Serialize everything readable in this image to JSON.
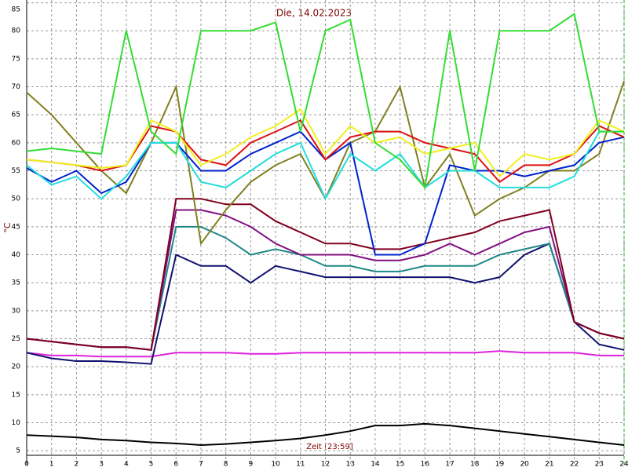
{
  "chart_data": {
    "type": "line",
    "title": "Die, 14.02.2023",
    "ylabel": "°C",
    "xlabel": "Zeit [23:59]",
    "x": [
      0,
      1,
      2,
      3,
      4,
      5,
      6,
      7,
      8,
      9,
      10,
      11,
      12,
      13,
      14,
      15,
      16,
      17,
      18,
      19,
      20,
      21,
      22,
      23,
      24
    ],
    "xlim": [
      0,
      24
    ],
    "xticks": [
      0,
      1,
      2,
      3,
      4,
      5,
      6,
      7,
      8,
      9,
      10,
      11,
      12,
      13,
      14,
      15,
      16,
      17,
      18,
      19,
      20,
      21,
      22,
      23,
      24
    ],
    "ylim": [
      2.5,
      85.5
    ],
    "yticks": [
      5,
      10,
      15,
      20,
      25,
      30,
      35,
      40,
      45,
      50,
      55,
      60,
      65,
      70,
      75,
      80,
      85
    ],
    "grid": true,
    "series": [
      {
        "color": "#33dd33",
        "values": [
          58.5,
          59,
          58.5,
          58,
          80,
          62,
          58,
          80,
          80,
          80,
          81.5,
          62,
          80,
          82,
          60,
          57,
          52,
          80,
          55,
          80,
          80,
          80,
          83,
          62,
          62
        ]
      },
      {
        "color": "#f0f020",
        "values": [
          57,
          56.5,
          56,
          55.5,
          56,
          64,
          62,
          56,
          58,
          61,
          63,
          66,
          58,
          63,
          60,
          61,
          58,
          59,
          60,
          54,
          58,
          57,
          58,
          64,
          62
        ]
      },
      {
        "color": "#dd1111",
        "values": [
          57,
          56.5,
          56,
          55,
          56,
          63,
          62,
          57,
          56,
          60,
          62,
          64,
          57,
          61,
          62,
          62,
          60,
          59,
          58,
          53,
          56,
          56,
          58,
          63,
          61
        ]
      },
      {
        "color": "#22dddd",
        "values": [
          56,
          52.5,
          54,
          50,
          54,
          60,
          60,
          53,
          52,
          55,
          58,
          60,
          50,
          58,
          55,
          58,
          52,
          55,
          55,
          52,
          52,
          52,
          54,
          62,
          62
        ]
      },
      {
        "color": "#0022cc",
        "values": [
          55.5,
          53,
          55,
          51,
          53,
          60,
          60,
          55,
          55,
          58,
          60,
          62,
          57,
          60,
          40,
          40,
          42,
          56,
          55,
          55,
          54,
          55,
          56,
          60,
          61
        ]
      },
      {
        "color": "#808020",
        "values": [
          69,
          65,
          60,
          55,
          51,
          60,
          70,
          42,
          48,
          53,
          56,
          58,
          50,
          60,
          62,
          70,
          52,
          58,
          47,
          50,
          52,
          55,
          55,
          58,
          71
        ]
      },
      {
        "color": "#800020",
        "values": [
          25,
          24.5,
          24,
          23.5,
          23.5,
          23,
          50,
          50,
          49,
          49,
          46,
          44,
          42,
          42,
          41,
          41,
          42,
          43,
          44,
          46,
          47,
          48,
          28,
          26,
          25
        ]
      },
      {
        "color": "#801080",
        "values": [
          25,
          24.5,
          24,
          23.5,
          23.5,
          23,
          48,
          48,
          47,
          45,
          42,
          40,
          40,
          40,
          39,
          39,
          40,
          42,
          40,
          42,
          44,
          45,
          28,
          26,
          25
        ]
      },
      {
        "color": "#208888",
        "values": [
          25,
          24.5,
          24,
          23.5,
          23.5,
          23,
          45,
          45,
          43,
          40,
          41,
          40,
          38,
          38,
          37,
          37,
          38,
          38,
          38,
          40,
          41,
          42,
          28,
          26,
          25
        ]
      },
      {
        "color": "#101070",
        "values": [
          22.5,
          21.5,
          21,
          21,
          20.8,
          20.5,
          40,
          38,
          38,
          35,
          38,
          37,
          36,
          36,
          36,
          36,
          36,
          36,
          35,
          36,
          40,
          42,
          28,
          24,
          23
        ]
      },
      {
        "color": "#dd22dd",
        "values": [
          22.5,
          22,
          22,
          21.8,
          21.8,
          21.8,
          22.5,
          22.5,
          22.5,
          22.3,
          22.3,
          22.5,
          22.5,
          22.5,
          22.5,
          22.5,
          22.5,
          22.5,
          22.5,
          22.8,
          22.5,
          22.5,
          22.5,
          22,
          22
        ]
      },
      {
        "color": "#000000",
        "values": [
          7.8,
          7.6,
          7.4,
          7,
          6.8,
          6.5,
          6.3,
          6,
          6.2,
          6.5,
          6.8,
          7.2,
          7.8,
          8.5,
          9.5,
          9.5,
          9.8,
          9.5,
          9,
          8.5,
          8,
          7.5,
          7,
          6.5,
          6
        ]
      }
    ]
  }
}
